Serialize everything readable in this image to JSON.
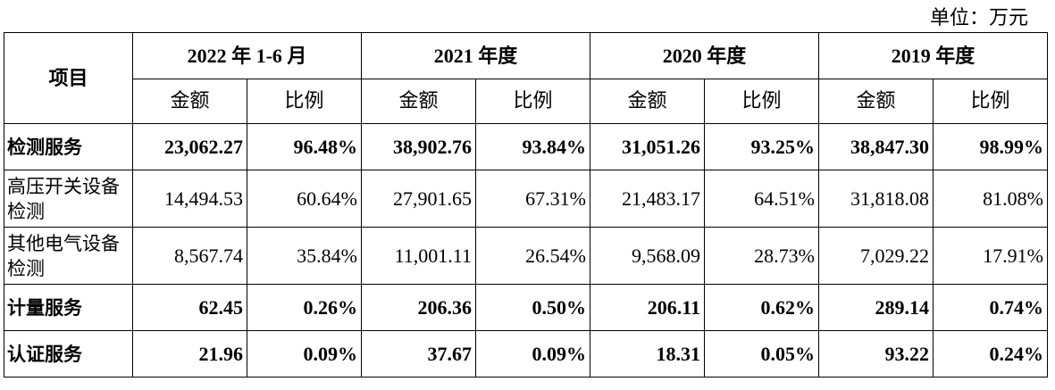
{
  "unit_label": "单位：万元",
  "header": {
    "item_label": "项目",
    "periods": [
      "2022 年 1-6 月",
      "2021 年度",
      "2020 年度",
      "2019 年度"
    ],
    "amount_label": "金额",
    "ratio_label": "比例"
  },
  "rows": [
    {
      "name": "检测服务",
      "bold": true,
      "cells": [
        "23,062.27",
        "96.48%",
        "38,902.76",
        "93.84%",
        "31,051.26",
        "93.25%",
        "38,847.30",
        "98.99%"
      ]
    },
    {
      "name": "高压开关设备检测",
      "bold": false,
      "cells": [
        "14,494.53",
        "60.64%",
        "27,901.65",
        "67.31%",
        "21,483.17",
        "64.51%",
        "31,818.08",
        "81.08%"
      ]
    },
    {
      "name": "其他电气设备检测",
      "bold": false,
      "cells": [
        "8,567.74",
        "35.84%",
        "11,001.11",
        "26.54%",
        "9,568.09",
        "28.73%",
        "7,029.22",
        "17.91%"
      ]
    },
    {
      "name": "计量服务",
      "bold": true,
      "cells": [
        "62.45",
        "0.26%",
        "206.36",
        "0.50%",
        "206.11",
        "0.62%",
        "289.14",
        "0.74%"
      ]
    },
    {
      "name": "认证服务",
      "bold": true,
      "cells": [
        "21.96",
        "0.09%",
        "37.67",
        "0.09%",
        "18.31",
        "0.05%",
        "93.22",
        "0.24%"
      ]
    }
  ]
}
